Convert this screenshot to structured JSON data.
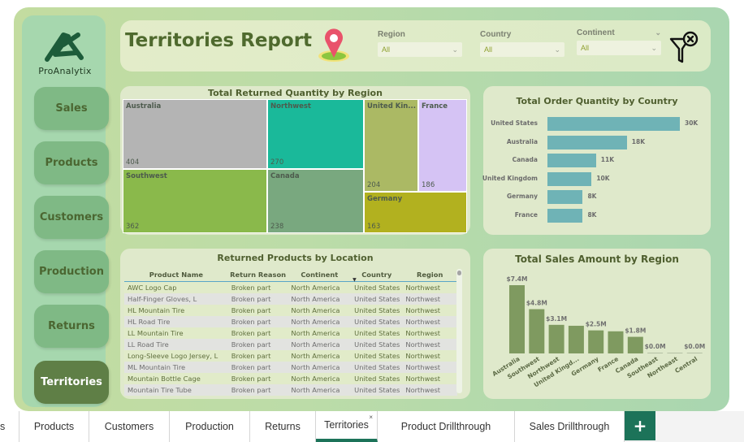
{
  "brand": {
    "name": "ProAnalytix"
  },
  "header": {
    "title": "Territories Report",
    "pin_icon": "map-pin-icon",
    "clear_filter_icon": "filter-clear-icon"
  },
  "slicers": [
    {
      "label": "Region",
      "value": "All"
    },
    {
      "label": "Country",
      "value": "All"
    },
    {
      "label": "Continent",
      "value": "All"
    }
  ],
  "sidebar": {
    "items": [
      {
        "label": "Sales",
        "active": false
      },
      {
        "label": "Products",
        "active": false
      },
      {
        "label": "Customers",
        "active": false
      },
      {
        "label": "Production",
        "active": false
      },
      {
        "label": "Returns",
        "active": false
      },
      {
        "label": "Territories",
        "active": true
      }
    ]
  },
  "colors": {
    "accent": "#1c7359",
    "active_nav": "#5f7f46",
    "nav": "#7fb985",
    "hbar": "#6fb3b6",
    "vbar": "#7f9a60"
  },
  "treemap": {
    "title": "Total Returned Quantity by Region",
    "cells": [
      {
        "label": "Australia",
        "value": "404",
        "color": "#b4b4b4"
      },
      {
        "label": "Southwest",
        "value": "362",
        "color": "#8ab94b"
      },
      {
        "label": "Northwest",
        "value": "270",
        "color": "#1ab99a"
      },
      {
        "label": "Canada",
        "value": "238",
        "color": "#79a87f"
      },
      {
        "label": "United Kin...",
        "value": "204",
        "color": "#abb964"
      },
      {
        "label": "France",
        "value": "186",
        "color": "#d5c3f4"
      },
      {
        "label": "Germany",
        "value": "163",
        "color": "#b2b11f"
      }
    ]
  },
  "table": {
    "title": "Returned Products by Location",
    "columns": [
      "Product Name",
      "Return Reason",
      "Continent",
      "Country",
      "Region"
    ],
    "sorted_column": "Country",
    "rows": [
      [
        "AWC Logo Cap",
        "Broken part",
        "North America",
        "United States",
        "Northwest"
      ],
      [
        "Half-Finger Gloves, L",
        "Broken part",
        "North America",
        "United States",
        "Northwest"
      ],
      [
        "HL Mountain Tire",
        "Broken part",
        "North America",
        "United States",
        "Northwest"
      ],
      [
        "HL Road Tire",
        "Broken part",
        "North America",
        "United States",
        "Northwest"
      ],
      [
        "LL Mountain Tire",
        "Broken part",
        "North America",
        "United States",
        "Northwest"
      ],
      [
        "LL Road Tire",
        "Broken part",
        "North America",
        "United States",
        "Northwest"
      ],
      [
        "Long-Sleeve Logo Jersey, L",
        "Broken part",
        "North America",
        "United States",
        "Northwest"
      ],
      [
        "ML Mountain Tire",
        "Broken part",
        "North America",
        "United States",
        "Northwest"
      ],
      [
        "Mountain Bottle Cage",
        "Broken part",
        "North America",
        "United States",
        "Northwest"
      ],
      [
        "Mountain Tire Tube",
        "Broken part",
        "North America",
        "United States",
        "Northwest"
      ]
    ]
  },
  "chart_data": [
    {
      "type": "bar",
      "orientation": "horizontal",
      "title": "Total Order Quantity by Country",
      "categories": [
        "United States",
        "Australia",
        "Canada",
        "United Kingdom",
        "Germany",
        "France"
      ],
      "values": [
        30000,
        18000,
        11000,
        10000,
        8000,
        8000
      ],
      "data_labels": [
        "30K",
        "18K",
        "11K",
        "10K",
        "8K",
        "8K"
      ],
      "xlabel": "",
      "ylabel": "",
      "grid": false
    },
    {
      "type": "bar",
      "orientation": "vertical",
      "title": "Total Sales Amount by Region",
      "categories": [
        "Australia",
        "Southwest",
        "Northwest",
        "United Kingd...",
        "Germany",
        "France",
        "Canada",
        "Southeast",
        "Northeast",
        "Central"
      ],
      "values": [
        7.4,
        4.8,
        3.1,
        3.0,
        2.5,
        2.4,
        1.8,
        0.0,
        0.0,
        0.0
      ],
      "data_labels": [
        "$7.4M",
        "$4.8M",
        "$3.1M",
        "",
        "$2.5M",
        "",
        "$1.8M",
        "$0.0M",
        "",
        "$0.0M"
      ],
      "unit": "$M",
      "xlabel": "",
      "ylabel": "",
      "grid": false
    }
  ],
  "tabs": [
    {
      "label": "s",
      "active": false
    },
    {
      "label": "Products",
      "active": false
    },
    {
      "label": "Customers",
      "active": false
    },
    {
      "label": "Production",
      "active": false
    },
    {
      "label": "Returns",
      "active": false
    },
    {
      "label": "Territories",
      "active": true,
      "close": "×"
    },
    {
      "label": "Product Drillthrough",
      "active": false
    },
    {
      "label": "Sales Drillthrough",
      "active": false
    }
  ],
  "add_tab_label": "+"
}
